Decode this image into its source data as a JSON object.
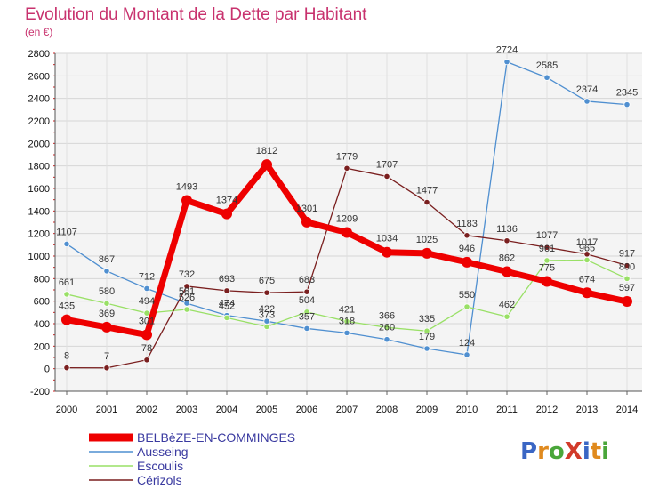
{
  "chart_data": {
    "type": "line",
    "title": "Evolution du Montant de la Dette par Habitant",
    "subtitle": "(en €)",
    "x": [
      "2000",
      "2001",
      "2002",
      "2003",
      "2004",
      "2005",
      "2006",
      "2007",
      "2008",
      "2009",
      "2010",
      "2011",
      "2012",
      "2013",
      "2014"
    ],
    "ylim": [
      -200,
      2800
    ],
    "yticks": [
      -200,
      0,
      200,
      400,
      600,
      800,
      1000,
      1200,
      1400,
      1600,
      1800,
      2000,
      2200,
      2400,
      2600,
      2800
    ],
    "grid": true,
    "legend_position": "bottom-left",
    "series": [
      {
        "name": "BELBèZE-EN-COMMINGES",
        "color": "#ee0000",
        "values": [
          435,
          369,
          301,
          1493,
          1374,
          1812,
          1301,
          1209,
          1034,
          1025,
          946,
          862,
          775,
          674,
          597
        ]
      },
      {
        "name": "Ausseing",
        "color": "#4f8fd0",
        "values": [
          1107,
          867,
          712,
          581,
          474,
          422,
          357,
          318,
          260,
          179,
          124,
          2724,
          2585,
          2374,
          2345
        ]
      },
      {
        "name": "Escoulis",
        "color": "#99e066",
        "values": [
          661,
          580,
          494,
          526,
          452,
          373,
          504,
          421,
          366,
          335,
          550,
          462,
          961,
          965,
          800
        ]
      },
      {
        "name": "Cérizols",
        "color": "#7a1f1f",
        "values": [
          8,
          7,
          78,
          732,
          693,
          675,
          683,
          1779,
          1707,
          1477,
          1183,
          1136,
          1077,
          1017,
          917
        ]
      }
    ]
  },
  "logo": {
    "text": "ProXiti"
  }
}
